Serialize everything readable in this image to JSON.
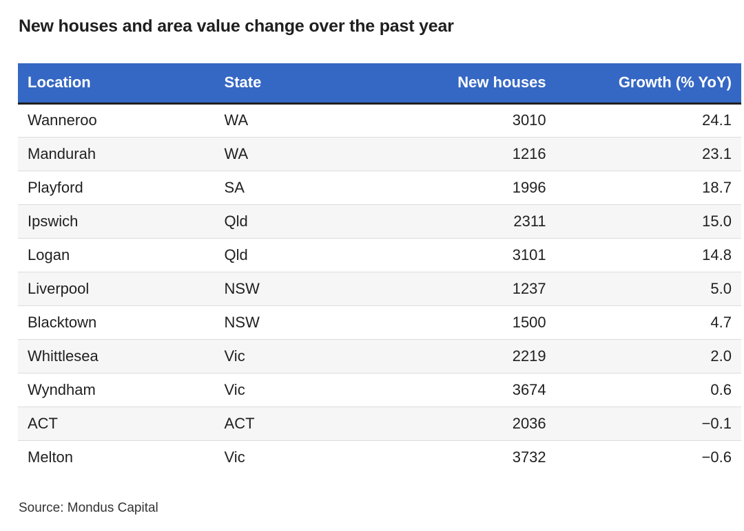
{
  "title": "New houses and area value change over the past year",
  "source": "Source: Mondus Capital",
  "colors": {
    "header_bg": "#3567c4",
    "header_text": "#ffffff",
    "stripe": "#f6f6f6"
  },
  "chart_data": {
    "type": "table",
    "title": "New houses and area value change over the past year",
    "columns": [
      "Location",
      "State",
      "New houses",
      "Growth (% YoY)"
    ],
    "rows": [
      [
        "Wanneroo",
        "WA",
        "3010",
        "24.1"
      ],
      [
        "Mandurah",
        "WA",
        "1216",
        "23.1"
      ],
      [
        "Playford",
        "SA",
        "1996",
        "18.7"
      ],
      [
        "Ipswich",
        "Qld",
        "2311",
        "15.0"
      ],
      [
        "Logan",
        "Qld",
        "3101",
        "14.8"
      ],
      [
        "Liverpool",
        "NSW",
        "1237",
        "5.0"
      ],
      [
        "Blacktown",
        "NSW",
        "1500",
        "4.7"
      ],
      [
        "Whittlesea",
        "Vic",
        "2219",
        "2.0"
      ],
      [
        "Wyndham",
        "Vic",
        "3674",
        "0.6"
      ],
      [
        "ACT",
        "ACT",
        "2036",
        "−0.1"
      ],
      [
        "Melton",
        "Vic",
        "3732",
        "−0.6"
      ]
    ]
  }
}
